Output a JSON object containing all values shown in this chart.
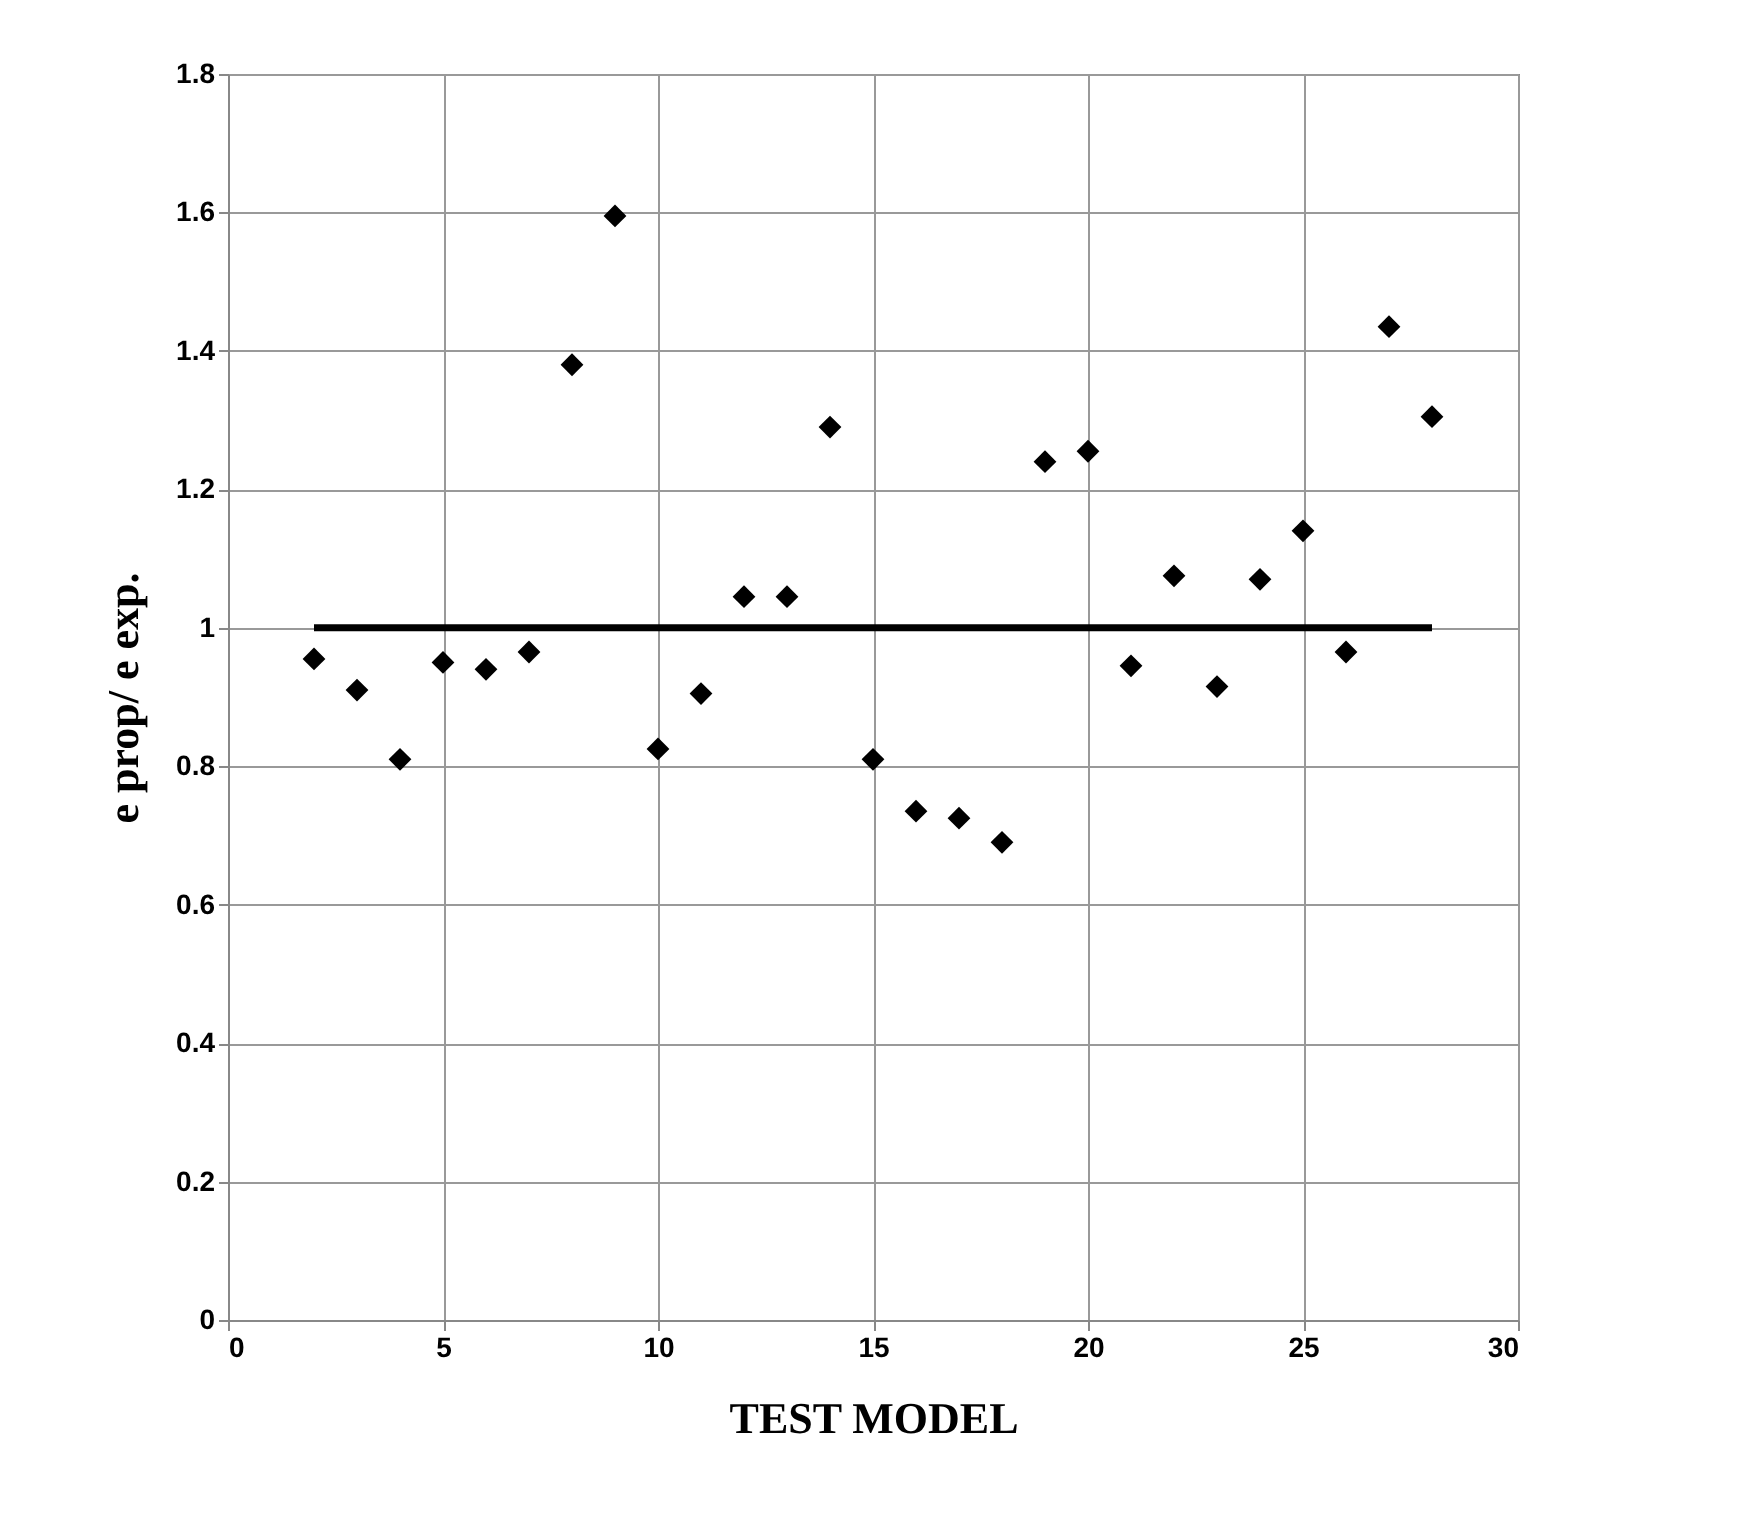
{
  "chart_data": {
    "type": "scatter",
    "xlabel": "TEST MODEL",
    "ylabel": "e prop/ e exp.",
    "xlim": [
      0,
      30
    ],
    "xticks": [
      0,
      5,
      10,
      15,
      20,
      25,
      30
    ],
    "ylim": [
      0,
      1.8
    ],
    "yticks": [
      0,
      0.2,
      0.4,
      0.6,
      0.8,
      1,
      1.2,
      1.4,
      1.6,
      1.8
    ],
    "grid": true,
    "series": [
      {
        "marker": "diamond",
        "color": "#000000",
        "x": [
          2,
          3,
          4,
          5,
          6,
          7,
          8,
          9,
          10,
          11,
          12,
          13,
          14,
          15,
          16,
          17,
          18,
          19,
          20,
          21,
          22,
          23,
          24,
          25,
          26,
          27,
          28
        ],
        "values": [
          0.955,
          0.91,
          0.81,
          0.95,
          0.94,
          0.965,
          1.38,
          1.595,
          0.825,
          0.905,
          1.045,
          1.045,
          1.29,
          0.81,
          0.735,
          0.725,
          0.69,
          1.24,
          1.255,
          0.945,
          1.075,
          0.915,
          1.07,
          1.14,
          0.965,
          1.435,
          1.305
        ]
      },
      {
        "type": "line",
        "color": "#000000",
        "x": [
          2,
          28
        ],
        "values": [
          1,
          1
        ]
      }
    ]
  }
}
